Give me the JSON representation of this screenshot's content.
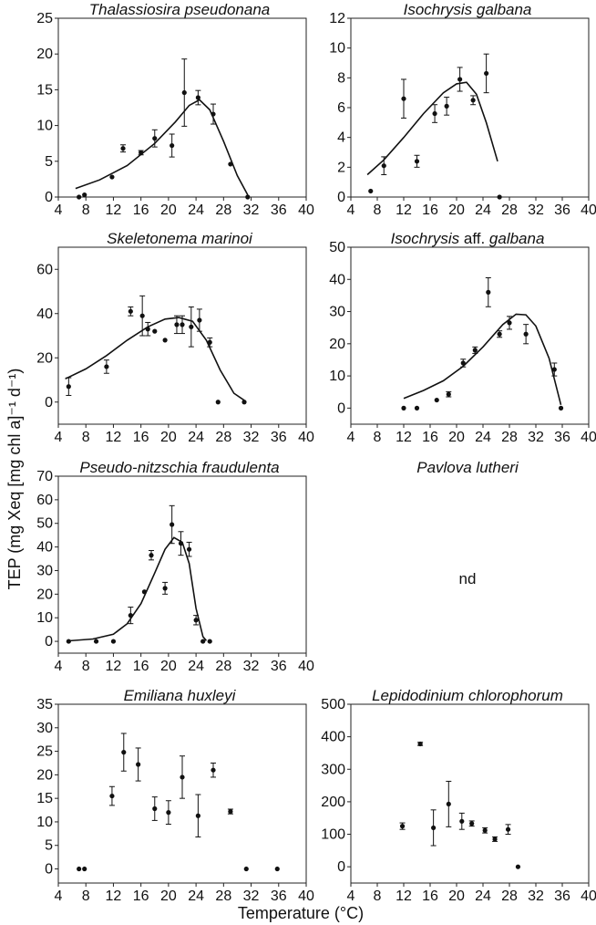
{
  "figure": {
    "ylabel": "TEP (mg Xeq [mg chl a]⁻¹ d⁻¹)",
    "xlabel": "Temperature (°C)"
  },
  "chart_data": [
    {
      "type": "scatter",
      "title": "Thalassiosira pseudonana",
      "xlim": [
        4,
        40
      ],
      "ylim": [
        0,
        25
      ],
      "xticks": [
        4,
        8,
        12,
        16,
        20,
        24,
        28,
        32,
        36,
        40
      ],
      "yticks": [
        0,
        5,
        10,
        15,
        20,
        25
      ],
      "points": [
        {
          "x": 7.0,
          "y": 0.0
        },
        {
          "x": 7.8,
          "y": 0.3
        },
        {
          "x": 11.8,
          "y": 2.8
        },
        {
          "x": 13.4,
          "y": 6.8,
          "err": 0.5
        },
        {
          "x": 16.0,
          "y": 6.2,
          "err": 0.3
        },
        {
          "x": 18.0,
          "y": 8.2,
          "err": 1.2
        },
        {
          "x": 20.5,
          "y": 7.2,
          "err": 1.6
        },
        {
          "x": 22.3,
          "y": 14.6,
          "err": 4.7
        },
        {
          "x": 24.3,
          "y": 13.9,
          "err": 1.0
        },
        {
          "x": 26.5,
          "y": 11.6,
          "err": 1.4
        },
        {
          "x": 29.0,
          "y": 4.6
        },
        {
          "x": 31.5,
          "y": 0.0
        }
      ],
      "fit": [
        [
          6.5,
          1.2
        ],
        [
          10,
          2.4
        ],
        [
          14,
          4.4
        ],
        [
          18,
          7.5
        ],
        [
          21,
          10.5
        ],
        [
          23,
          12.8
        ],
        [
          24.5,
          13.6
        ],
        [
          26,
          12.2
        ],
        [
          28,
          7.8
        ],
        [
          30,
          3.0
        ],
        [
          31.5,
          0.3
        ]
      ]
    },
    {
      "type": "scatter",
      "title": "Isochrysis galbana",
      "xlim": [
        4,
        40
      ],
      "ylim": [
        0,
        12
      ],
      "xticks": [
        4,
        8,
        12,
        16,
        20,
        24,
        28,
        32,
        36,
        40
      ],
      "yticks": [
        0,
        2,
        4,
        6,
        8,
        10,
        12
      ],
      "points": [
        {
          "x": 7.0,
          "y": 0.4
        },
        {
          "x": 9.0,
          "y": 2.1,
          "err": 0.6
        },
        {
          "x": 12.0,
          "y": 6.6,
          "err": 1.3
        },
        {
          "x": 14.0,
          "y": 2.4,
          "err": 0.4
        },
        {
          "x": 16.7,
          "y": 5.6,
          "err": 0.6
        },
        {
          "x": 18.5,
          "y": 6.1,
          "err": 0.6
        },
        {
          "x": 20.5,
          "y": 7.9,
          "err": 0.8
        },
        {
          "x": 22.5,
          "y": 6.5,
          "err": 0.3
        },
        {
          "x": 24.5,
          "y": 8.3,
          "err": 1.3
        },
        {
          "x": 26.5,
          "y": 0.0
        }
      ],
      "fit": [
        [
          6.5,
          1.5
        ],
        [
          9,
          2.5
        ],
        [
          12,
          4.0
        ],
        [
          15,
          5.6
        ],
        [
          18,
          7.0
        ],
        [
          20,
          7.6
        ],
        [
          21.5,
          7.7
        ],
        [
          23,
          6.9
        ],
        [
          24.5,
          5.0
        ],
        [
          26.2,
          2.4
        ]
      ]
    },
    {
      "type": "scatter",
      "title": "Skeletonema marinoi",
      "xlim": [
        4,
        40
      ],
      "ylim": [
        -10,
        70
      ],
      "xticks": [
        4,
        8,
        12,
        16,
        20,
        24,
        28,
        32,
        36,
        40
      ],
      "yticks": [
        0,
        20,
        40,
        60
      ],
      "points": [
        {
          "x": 5.5,
          "y": 7.0,
          "err": 4.0
        },
        {
          "x": 11.0,
          "y": 16.0,
          "err": 3.0
        },
        {
          "x": 14.5,
          "y": 41.0,
          "err": 2.0
        },
        {
          "x": 16.2,
          "y": 39.0,
          "err": 9.0
        },
        {
          "x": 17.0,
          "y": 33.0,
          "err": 3.0
        },
        {
          "x": 18.0,
          "y": 32.0
        },
        {
          "x": 19.5,
          "y": 28.0
        },
        {
          "x": 21.2,
          "y": 35.0,
          "err": 4.0
        },
        {
          "x": 22.0,
          "y": 35.0,
          "err": 4.0
        },
        {
          "x": 23.3,
          "y": 34.0,
          "err": 9.0
        },
        {
          "x": 24.5,
          "y": 37.0,
          "err": 5.0
        },
        {
          "x": 26.0,
          "y": 27.0,
          "err": 2.0
        },
        {
          "x": 27.2,
          "y": 0.0
        },
        {
          "x": 31.0,
          "y": 0.0
        }
      ],
      "fit": [
        [
          5,
          10.5
        ],
        [
          8,
          15.0
        ],
        [
          11,
          21.0
        ],
        [
          14,
          28.0
        ],
        [
          17,
          34.0
        ],
        [
          19.5,
          37.5
        ],
        [
          21.5,
          38.2
        ],
        [
          23.5,
          36.5
        ],
        [
          25.5,
          28.0
        ],
        [
          27.5,
          14.5
        ],
        [
          29.5,
          4.0
        ],
        [
          31,
          0.8
        ]
      ]
    },
    {
      "type": "scatter",
      "title": "Isochrysis aff. galbana",
      "title_parts": [
        "Isochrysis",
        " aff. ",
        "galbana"
      ],
      "xlim": [
        4,
        40
      ],
      "ylim": [
        -5,
        50
      ],
      "xticks": [
        4,
        8,
        12,
        16,
        20,
        24,
        28,
        32,
        36,
        40
      ],
      "yticks": [
        0,
        10,
        20,
        30,
        40,
        50
      ],
      "points": [
        {
          "x": 12.0,
          "y": 0.0
        },
        {
          "x": 14.0,
          "y": 0.0
        },
        {
          "x": 17.0,
          "y": 2.5
        },
        {
          "x": 18.8,
          "y": 4.3,
          "err": 0.8
        },
        {
          "x": 21.0,
          "y": 14.0,
          "err": 1.2
        },
        {
          "x": 22.8,
          "y": 18.0,
          "err": 1.0
        },
        {
          "x": 24.8,
          "y": 36.0,
          "err": 4.5
        },
        {
          "x": 26.5,
          "y": 23.0,
          "err": 1.0
        },
        {
          "x": 28.0,
          "y": 26.5,
          "err": 2.0
        },
        {
          "x": 30.5,
          "y": 23.0,
          "err": 3.0
        },
        {
          "x": 34.8,
          "y": 12.0,
          "err": 2.0
        },
        {
          "x": 35.8,
          "y": 0.0
        }
      ],
      "fit": [
        [
          12,
          3.0
        ],
        [
          15,
          5.5
        ],
        [
          18,
          8.5
        ],
        [
          21,
          13.0
        ],
        [
          24,
          19.0
        ],
        [
          27,
          26.0
        ],
        [
          29,
          29.2
        ],
        [
          30.5,
          29.0
        ],
        [
          32,
          25.5
        ],
        [
          34,
          15.5
        ],
        [
          35.8,
          1.0
        ]
      ]
    },
    {
      "type": "scatter",
      "title": "Pseudo-nitzschia fraudulenta",
      "xlim": [
        4,
        40
      ],
      "ylim": [
        -5,
        70
      ],
      "xticks": [
        4,
        8,
        12,
        16,
        20,
        24,
        28,
        32,
        36,
        40
      ],
      "yticks": [
        0,
        10,
        20,
        30,
        40,
        50,
        60,
        70
      ],
      "points": [
        {
          "x": 5.5,
          "y": 0.0
        },
        {
          "x": 9.5,
          "y": 0.0
        },
        {
          "x": 12.0,
          "y": 0.0
        },
        {
          "x": 14.5,
          "y": 11.0,
          "err": 3.5
        },
        {
          "x": 16.5,
          "y": 21.0
        },
        {
          "x": 17.5,
          "y": 36.5,
          "err": 2.0
        },
        {
          "x": 19.5,
          "y": 22.5,
          "err": 2.5
        },
        {
          "x": 20.5,
          "y": 49.5,
          "err": 8.0
        },
        {
          "x": 21.8,
          "y": 41.5,
          "err": 5.0
        },
        {
          "x": 23.0,
          "y": 39.0,
          "err": 3.0
        },
        {
          "x": 24.0,
          "y": 9.0,
          "err": 2.0
        },
        {
          "x": 25.0,
          "y": 0.0
        },
        {
          "x": 26.0,
          "y": 0.0
        }
      ],
      "fit": [
        [
          5.5,
          0.2
        ],
        [
          9,
          1.0
        ],
        [
          12,
          3.0
        ],
        [
          14,
          7.5
        ],
        [
          16,
          16.0
        ],
        [
          18,
          29.0
        ],
        [
          19.5,
          39.0
        ],
        [
          20.8,
          44.0
        ],
        [
          22,
          42.0
        ],
        [
          23,
          33.0
        ],
        [
          24,
          14.0
        ],
        [
          25,
          2.0
        ],
        [
          25.5,
          0.3
        ]
      ]
    },
    {
      "type": "scatter",
      "title": "Pavlova lutheri",
      "annotation": "nd",
      "points": []
    },
    {
      "type": "scatter",
      "title": "Emiliana huxleyi",
      "xlim": [
        4,
        40
      ],
      "ylim": [
        -3,
        35
      ],
      "xticks": [
        4,
        8,
        12,
        16,
        20,
        24,
        28,
        32,
        36,
        40
      ],
      "yticks": [
        0,
        5,
        10,
        15,
        20,
        25,
        30,
        35
      ],
      "points": [
        {
          "x": 7.0,
          "y": 0.0
        },
        {
          "x": 7.8,
          "y": 0.0
        },
        {
          "x": 11.8,
          "y": 15.5,
          "err": 2.0
        },
        {
          "x": 13.5,
          "y": 24.8,
          "err": 4.0
        },
        {
          "x": 15.6,
          "y": 22.2,
          "err": 3.5
        },
        {
          "x": 18.0,
          "y": 12.8,
          "err": 2.5
        },
        {
          "x": 20.0,
          "y": 12.0,
          "err": 2.5
        },
        {
          "x": 22.0,
          "y": 19.5,
          "err": 4.5
        },
        {
          "x": 24.3,
          "y": 11.3,
          "err": 4.5
        },
        {
          "x": 26.5,
          "y": 21.0,
          "err": 1.5
        },
        {
          "x": 29.0,
          "y": 12.2,
          "err": 0.5
        },
        {
          "x": 31.3,
          "y": 0.0
        },
        {
          "x": 35.8,
          "y": 0.0
        }
      ]
    },
    {
      "type": "scatter",
      "title": "Lepidodinium chlorophorum",
      "xlim": [
        4,
        40
      ],
      "ylim": [
        -50,
        500
      ],
      "xticks": [
        4,
        8,
        12,
        16,
        20,
        24,
        28,
        32,
        36,
        40
      ],
      "yticks": [
        0,
        100,
        200,
        300,
        400,
        500
      ],
      "points": [
        {
          "x": 11.8,
          "y": 125.0,
          "err": 10.0
        },
        {
          "x": 14.5,
          "y": 378.0,
          "err": 5.0
        },
        {
          "x": 16.5,
          "y": 120.0,
          "err": 55.0
        },
        {
          "x": 18.8,
          "y": 193.0,
          "err": 70.0
        },
        {
          "x": 20.8,
          "y": 140.0,
          "err": 25.0
        },
        {
          "x": 22.3,
          "y": 133.0,
          "err": 8.0
        },
        {
          "x": 24.3,
          "y": 112.0,
          "err": 8.0
        },
        {
          "x": 25.8,
          "y": 85.0,
          "err": 7.0
        },
        {
          "x": 27.8,
          "y": 115.0,
          "err": 15.0
        },
        {
          "x": 29.3,
          "y": 0.0
        }
      ]
    }
  ]
}
